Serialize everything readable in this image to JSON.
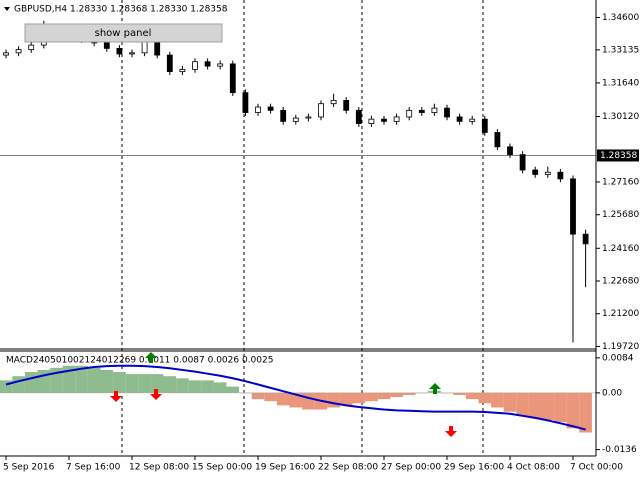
{
  "window_title": "GBPUSD,H4  1.28330 1.28368 1.28330 1.28358",
  "button": "show panel",
  "chart_data": [
    {
      "type": "candlestick",
      "categories": [
        "5 Sep 2016",
        null,
        null,
        null,
        null,
        "7 Sep 16:00",
        null,
        null,
        null,
        null,
        "12 Sep 08:00",
        null,
        null,
        null,
        null,
        "15 Sep 00:00",
        null,
        null,
        null,
        null,
        "19 Sep 16:00",
        null,
        null,
        null,
        null,
        "22 Sep 08:00",
        null,
        null,
        null,
        null,
        "27 Sep 00:00",
        null,
        null,
        null,
        null,
        "29 Sep 16:00",
        null,
        null,
        null,
        null,
        "4 Oct 08:00",
        null,
        null,
        null,
        null,
        "7 Oct 00:00",
        null
      ],
      "open": [
        1.329,
        1.33,
        1.3315,
        1.3335,
        1.3405,
        1.3385,
        1.337,
        1.336,
        1.3345,
        1.332,
        1.3295,
        1.33,
        1.335,
        1.329,
        1.3215,
        1.3225,
        1.326,
        1.324,
        1.325,
        1.312,
        1.303,
        1.3055,
        1.304,
        1.299,
        1.3005,
        1.301,
        1.307,
        1.3085,
        1.304,
        1.298,
        1.3,
        1.299,
        1.301,
        1.304,
        1.303,
        1.305,
        1.301,
        1.299,
        1.3,
        1.294,
        1.2875,
        1.284,
        1.277,
        1.275,
        1.276,
        1.273,
        1.248
      ],
      "high": [
        1.3315,
        1.333,
        1.335,
        1.3445,
        1.342,
        1.34,
        1.3385,
        1.3375,
        1.336,
        1.3335,
        1.3315,
        1.337,
        1.3365,
        1.3305,
        1.324,
        1.3275,
        1.3275,
        1.3265,
        1.3265,
        1.3135,
        1.307,
        1.307,
        1.3055,
        1.302,
        1.3025,
        1.3085,
        1.3115,
        1.31,
        1.3055,
        1.3015,
        1.3015,
        1.3025,
        1.3055,
        1.3055,
        1.307,
        1.3065,
        1.3025,
        1.3015,
        1.3015,
        1.2955,
        1.289,
        1.2855,
        1.2785,
        1.2785,
        1.2775,
        1.2745,
        1.25
      ],
      "low": [
        1.3275,
        1.3285,
        1.33,
        1.332,
        1.337,
        1.3355,
        1.3345,
        1.333,
        1.3305,
        1.328,
        1.328,
        1.3285,
        1.3275,
        1.32,
        1.32,
        1.321,
        1.3225,
        1.3225,
        1.3105,
        1.3015,
        1.3015,
        1.3025,
        1.2975,
        1.2975,
        1.299,
        1.2995,
        1.3055,
        1.3025,
        1.2965,
        1.2965,
        1.2975,
        1.2975,
        1.2995,
        1.3015,
        1.3015,
        1.2995,
        1.2975,
        1.2975,
        1.2925,
        1.286,
        1.2825,
        1.2755,
        1.2735,
        1.2735,
        1.2715,
        1.199,
        1.224
      ],
      "close": [
        1.33,
        1.3315,
        1.3335,
        1.3405,
        1.3385,
        1.337,
        1.336,
        1.3345,
        1.332,
        1.3295,
        1.33,
        1.335,
        1.329,
        1.3215,
        1.3225,
        1.326,
        1.324,
        1.325,
        1.312,
        1.303,
        1.3055,
        1.304,
        1.299,
        1.3005,
        1.301,
        1.307,
        1.3085,
        1.304,
        1.298,
        1.3,
        1.299,
        1.301,
        1.304,
        1.303,
        1.305,
        1.301,
        1.299,
        1.3,
        1.294,
        1.2875,
        1.284,
        1.277,
        1.275,
        1.276,
        1.273,
        1.248,
        1.2436
      ],
      "up_color": "#ffffff",
      "down_color": "#000000",
      "ylim": [
        1.1965,
        1.353
      ],
      "yticks": [
        {
          "value": 1.346,
          "label": "1.34600"
        },
        {
          "value": 1.33135,
          "label": "1.33135"
        },
        {
          "value": 1.3164,
          "label": "1.31640"
        },
        {
          "value": 1.3012,
          "label": "1.30120"
        },
        {
          "value": 1.2716,
          "label": "1.27160"
        },
        {
          "value": 1.2568,
          "label": "1.25680"
        },
        {
          "value": 1.2416,
          "label": "1.24160"
        },
        {
          "value": 1.2268,
          "label": "1.22680"
        },
        {
          "value": 1.212,
          "label": "1.21200"
        },
        {
          "value": 1.1972,
          "label": "1.19720"
        }
      ],
      "last_price": {
        "value": 1.28358,
        "label": "1.28358"
      }
    },
    {
      "type": "macd",
      "title": "MACD240501002124012269 0.0011 0.0087 0.0026 0.0025",
      "series": [
        {
          "color": "#e9967a",
          "positive_color": "#8fbc8f",
          "values": [
            0.003,
            0.004,
            0.005,
            0.0055,
            0.006,
            0.0065,
            0.0065,
            0.006,
            0.0055,
            0.005,
            0.0045,
            0.0045,
            0.0045,
            0.004,
            0.0035,
            0.003,
            0.003,
            0.0025,
            0.0015,
            0.0,
            -0.0015,
            -0.002,
            -0.003,
            -0.0035,
            -0.004,
            -0.004,
            -0.0035,
            -0.003,
            -0.0025,
            -0.002,
            -0.0015,
            -0.001,
            -0.0005,
            0.0,
            0.0005,
            0.0,
            -0.0005,
            -0.0015,
            -0.0025,
            -0.0035,
            -0.0045,
            -0.0055,
            -0.006,
            -0.0065,
            -0.007,
            -0.0085,
            -0.0095
          ]
        },
        {
          "color": "#0000cc",
          "values": [
            0.002,
            0.0028,
            0.0035,
            0.0042,
            0.0048,
            0.0053,
            0.0058,
            0.0062,
            0.0064,
            0.0065,
            0.0065,
            0.0064,
            0.0062,
            0.0059,
            0.0055,
            0.0051,
            0.0046,
            0.0041,
            0.0035,
            0.0028,
            0.002,
            0.0012,
            0.0004,
            -0.0004,
            -0.0012,
            -0.0019,
            -0.0025,
            -0.003,
            -0.0034,
            -0.0037,
            -0.004,
            -0.0042,
            -0.0043,
            -0.0044,
            -0.0045,
            -0.0045,
            -0.0045,
            -0.0045,
            -0.0046,
            -0.0048,
            -0.005,
            -0.0055,
            -0.006,
            -0.0066,
            -0.0073,
            -0.008,
            -0.0088
          ]
        }
      ],
      "ylim": [
        -0.0149,
        0.0098
      ],
      "yticks": [
        0.0084,
        {
          "value": 0,
          "label": "0.00"
        },
        -0.0136
      ]
    }
  ]
}
